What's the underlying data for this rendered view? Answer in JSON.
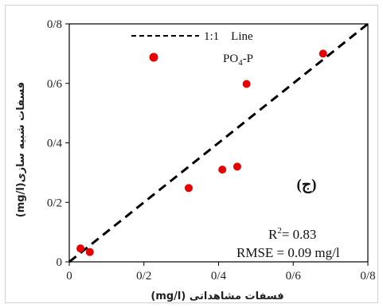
{
  "chart_data": {
    "type": "scatter",
    "xlim": [
      0,
      0.8
    ],
    "ylim": [
      0,
      0.8
    ],
    "x_ticks": [
      "0",
      "0/2",
      "0/4",
      "0/6",
      "0/8"
    ],
    "y_ticks": [
      "0",
      "0/2",
      "0/4",
      "0/6",
      "0/8"
    ],
    "tick_values": [
      0,
      0.2,
      0.4,
      0.6,
      0.8
    ],
    "xlabel": "فسفات مشاهداتی (mg/l)",
    "ylabel": "فسفات شبیه سازی(mg/l)",
    "grid": false,
    "legend": {
      "placement": "top-center",
      "line_label": "1:1    Line",
      "marker_label": "PO",
      "marker_sub": "4",
      "marker_suffix": "-P"
    },
    "stats": {
      "r2_prefix": "R",
      "r2_sup": "2",
      "r2_value": "= 0.83",
      "rmse": "RMSE = 0.09 mg/l"
    },
    "panel_label": "(ج)",
    "reference_line": {
      "name": "1:1 Line",
      "x": [
        0,
        0.8
      ],
      "y": [
        0,
        0.8
      ],
      "style": "dashed",
      "color": "#000000"
    },
    "series": [
      {
        "name": "PO4-P",
        "color": "#e60000",
        "points": [
          {
            "x": 0.03,
            "y": 0.045
          },
          {
            "x": 0.055,
            "y": 0.033
          },
          {
            "x": 0.32,
            "y": 0.248
          },
          {
            "x": 0.41,
            "y": 0.31
          },
          {
            "x": 0.45,
            "y": 0.32
          },
          {
            "x": 0.475,
            "y": 0.598
          },
          {
            "x": 0.68,
            "y": 0.7
          }
        ]
      }
    ]
  }
}
